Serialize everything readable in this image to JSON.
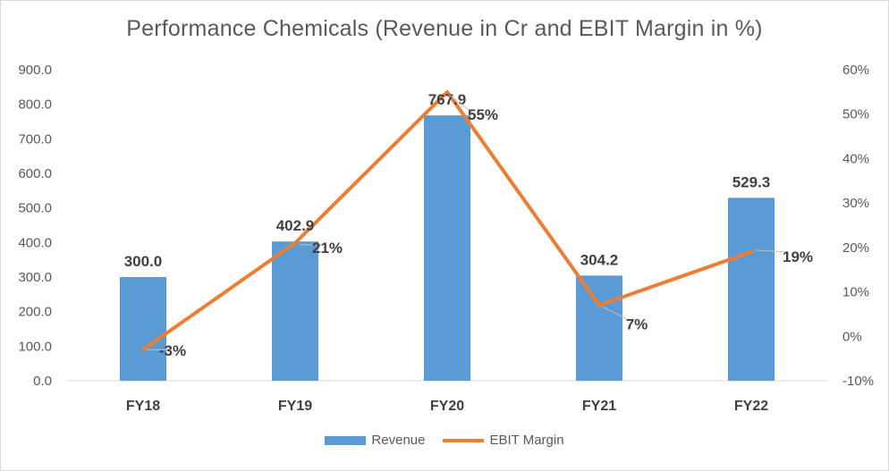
{
  "chart_data": {
    "type": "bar+line",
    "title": "Performance Chemicals (Revenue in Cr and EBIT Margin in %)",
    "categories": [
      "FY18",
      "FY19",
      "FY20",
      "FY21",
      "FY22"
    ],
    "series": [
      {
        "name": "Revenue",
        "type": "bar",
        "axis": "left",
        "color": "#5b9bd5",
        "values": [
          300.0,
          402.9,
          767.9,
          304.2,
          529.3
        ],
        "labels": [
          "300.0",
          "402.9",
          "767.9",
          "304.2",
          "529.3"
        ]
      },
      {
        "name": "EBIT Margin",
        "type": "line",
        "axis": "right",
        "color": "#ed7d31",
        "values": [
          -3,
          21,
          55,
          7,
          19
        ],
        "labels": [
          "-3%",
          "21%",
          "55%",
          "7%",
          "19%"
        ]
      }
    ],
    "y_left": {
      "min": 0,
      "max": 900,
      "ticks": [
        "0.0",
        "100.0",
        "200.0",
        "300.0",
        "400.0",
        "500.0",
        "600.0",
        "700.0",
        "800.0",
        "900.0"
      ]
    },
    "y_right": {
      "min": -10,
      "max": 60,
      "ticks": [
        "-10%",
        "0%",
        "10%",
        "20%",
        "30%",
        "40%",
        "50%",
        "60%"
      ]
    },
    "legend_position": "bottom",
    "grid": false
  }
}
